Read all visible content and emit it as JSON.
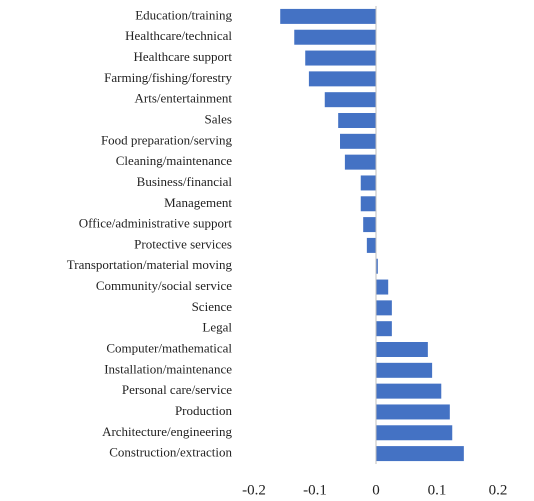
{
  "chart_data": {
    "type": "barh",
    "categories": [
      "Education/training",
      "Healthcare/technical",
      "Healthcare support",
      "Farming/fishing/forestry",
      "Arts/entertainment",
      "Sales",
      "Food preparation/serving",
      "Cleaning/maintenance",
      "Business/financial",
      "Management",
      "Office/administrative support",
      "Protective services",
      "Transportation/material moving",
      "Community/social service",
      "Science",
      "Legal",
      "Computer/mathematical",
      "Installation/maintenance",
      "Personal care/service",
      "Production",
      "Architecture/engineering",
      "Construction/extraction"
    ],
    "values": [
      -0.157,
      -0.134,
      -0.116,
      -0.11,
      -0.084,
      -0.062,
      -0.059,
      -0.051,
      -0.025,
      -0.025,
      -0.021,
      -0.015,
      0.003,
      0.02,
      0.026,
      0.026,
      0.085,
      0.092,
      0.107,
      0.121,
      0.125,
      0.144
    ],
    "color": "#4472c4",
    "xlim": [
      -0.2,
      0.2
    ],
    "xticks": [
      -0.2,
      -0.1,
      0,
      0.1,
      0.2
    ],
    "grid": false
  }
}
